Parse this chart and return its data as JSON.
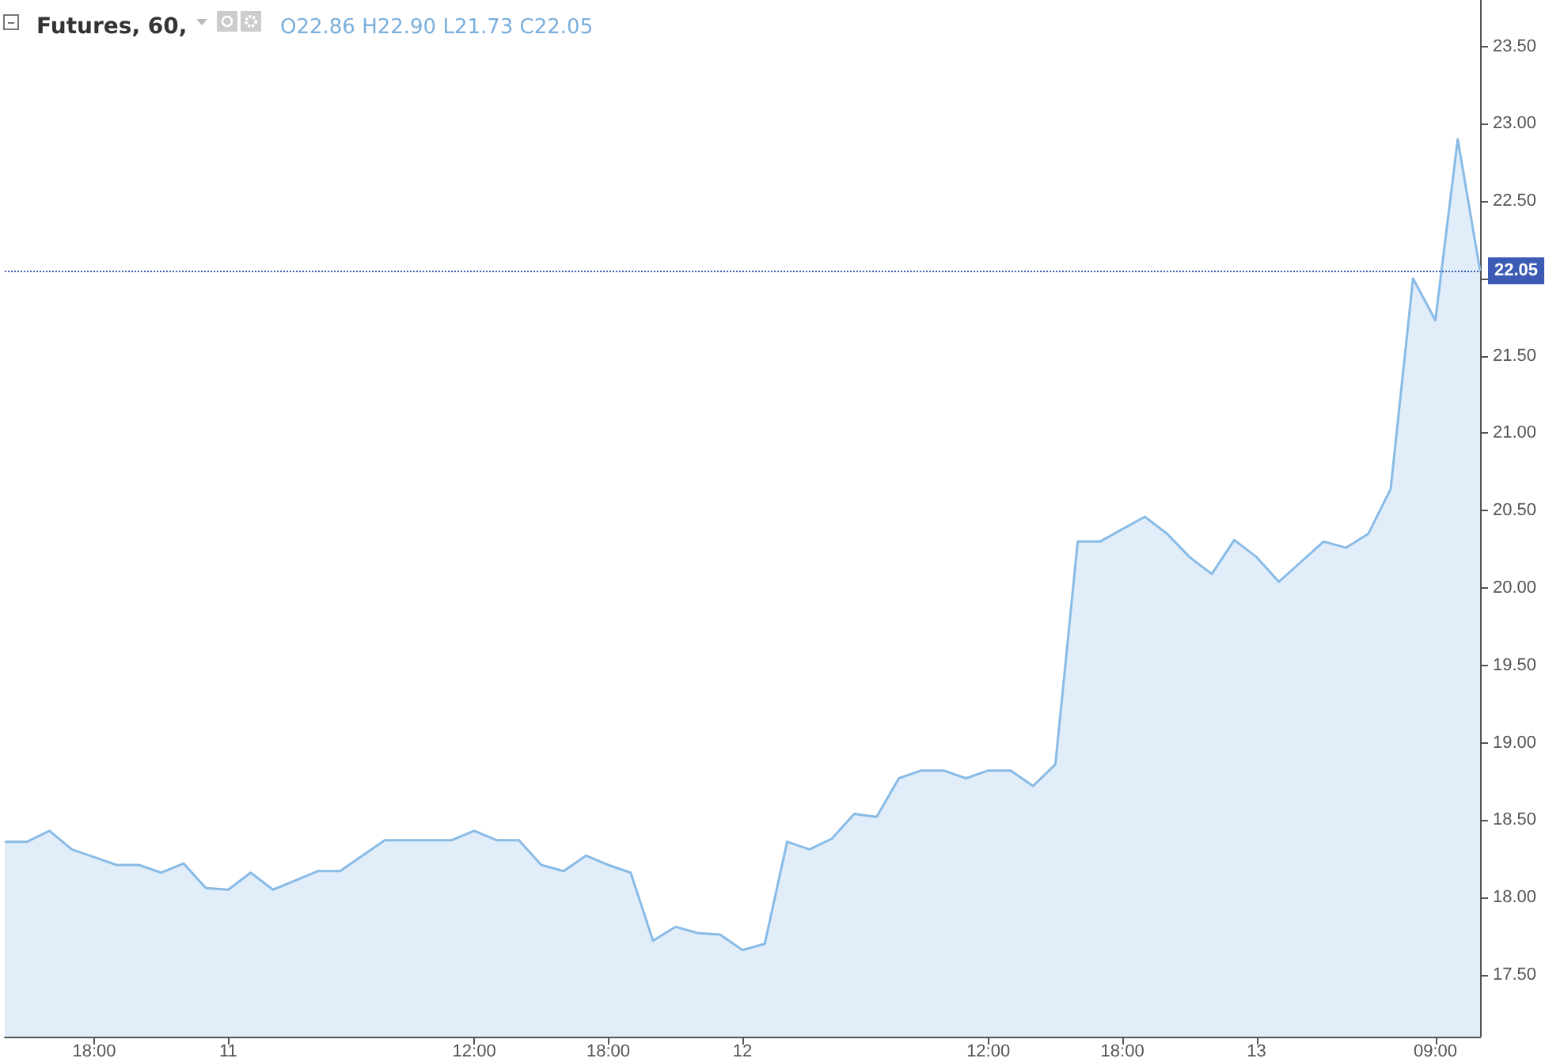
{
  "chart_data": {
    "type": "area",
    "title": "Futures, 60,",
    "subtitle": "O22.86 H22.90 L21.73 C22.05",
    "categories": [
      null,
      null,
      null,
      null,
      "18:00",
      null,
      null,
      null,
      null,
      null,
      "11",
      null,
      null,
      null,
      null,
      null,
      null,
      null,
      null,
      null,
      null,
      "12:00",
      null,
      null,
      null,
      null,
      null,
      "18:00",
      null,
      null,
      null,
      null,
      null,
      "12",
      null,
      null,
      null,
      null,
      null,
      null,
      null,
      null,
      null,
      null,
      "12:00",
      null,
      null,
      null,
      null,
      null,
      "18:00",
      null,
      null,
      null,
      null,
      null,
      "13",
      null,
      null,
      null,
      null,
      null,
      null,
      null,
      "09:00",
      null,
      null
    ],
    "series": [
      {
        "color": "#88bbe6",
        "values": [
          18.36,
          18.36,
          18.43,
          18.31,
          18.26,
          18.21,
          18.21,
          18.16,
          18.22,
          18.06,
          18.05,
          18.16,
          18.05,
          18.11,
          18.17,
          18.17,
          18.27,
          18.37,
          18.37,
          18.37,
          18.37,
          18.43,
          18.37,
          18.37,
          18.21,
          18.17,
          18.27,
          18.21,
          18.16,
          17.72,
          17.81,
          17.77,
          17.76,
          17.66,
          17.7,
          18.36,
          18.31,
          18.38,
          18.54,
          18.52,
          18.77,
          18.82,
          18.82,
          18.77,
          18.82,
          18.82,
          18.72,
          18.86,
          20.3,
          20.3,
          20.38,
          20.46,
          20.35,
          20.2,
          20.09,
          20.31,
          20.2,
          20.04,
          20.17,
          20.3,
          20.26,
          20.35,
          20.64,
          22.0,
          21.73,
          22.9,
          22.05
        ]
      }
    ],
    "ylim": [
      17.1,
      23.8
    ],
    "yticks": [
      {
        "value": 17.5,
        "label": "17.50"
      },
      {
        "value": 18,
        "label": "18.00"
      },
      {
        "value": 18.5,
        "label": "18.50"
      },
      {
        "value": 19,
        "label": "19.00"
      },
      {
        "value": 19.5,
        "label": "19.50"
      },
      {
        "value": 20,
        "label": "20.00"
      },
      {
        "value": 20.5,
        "label": "20.50"
      },
      {
        "value": 21,
        "label": "21.00"
      },
      {
        "value": 21.5,
        "label": "21.50"
      },
      {
        "value": 22,
        "label": null
      },
      {
        "value": 22.5,
        "label": "22.50"
      },
      {
        "value": 23,
        "label": "23.00"
      },
      {
        "value": 23.5,
        "label": "23.50"
      }
    ],
    "ref_lines": [
      {
        "axis": "y",
        "value": 22.05,
        "label": "22.05",
        "color": "#3b5bb5",
        "line_style": "dotted"
      }
    ],
    "grid": false,
    "marker": "none"
  }
}
